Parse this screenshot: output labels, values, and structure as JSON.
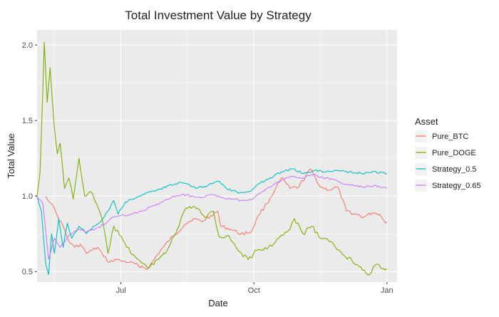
{
  "chart_data": {
    "type": "line",
    "title": "Total Investment Value by Strategy",
    "xlabel": "Date",
    "ylabel": "Total Value",
    "x_axis_type": "date",
    "xlim": [
      "2021-05-04",
      "2022-01-08"
    ],
    "ylim": [
      0.43,
      2.1
    ],
    "x_ticks": [
      {
        "date": "2021-07-01",
        "label": "Jul"
      },
      {
        "date": "2021-10-01",
        "label": "Oct"
      },
      {
        "date": "2022-01-01",
        "label": "Jan"
      }
    ],
    "y_ticks": [
      0.5,
      1.0,
      1.5,
      2.0
    ],
    "y_tick_labels": [
      "0.5",
      "1.0",
      "1.5",
      "2.0"
    ],
    "grid": true,
    "panel_background": "#EBEBEB",
    "legend": {
      "title": "Asset",
      "position": "right"
    },
    "series": [
      {
        "name": "Pure_BTC",
        "color": "#F8766D",
        "points": [
          [
            "2021-05-10",
            1.0
          ],
          [
            "2021-05-14",
            0.95
          ],
          [
            "2021-05-18",
            0.87
          ],
          [
            "2021-05-22",
            0.8
          ],
          [
            "2021-05-26",
            0.7
          ],
          [
            "2021-05-30",
            0.66
          ],
          [
            "2021-06-03",
            0.68
          ],
          [
            "2021-06-07",
            0.62
          ],
          [
            "2021-06-11",
            0.64
          ],
          [
            "2021-06-15",
            0.66
          ],
          [
            "2021-06-19",
            0.6
          ],
          [
            "2021-06-23",
            0.56
          ],
          [
            "2021-06-27",
            0.58
          ],
          [
            "2021-07-01",
            0.57
          ],
          [
            "2021-07-07",
            0.56
          ],
          [
            "2021-07-13",
            0.54
          ],
          [
            "2021-07-20",
            0.52
          ],
          [
            "2021-07-26",
            0.61
          ],
          [
            "2021-07-31",
            0.67
          ],
          [
            "2021-08-07",
            0.74
          ],
          [
            "2021-08-14",
            0.81
          ],
          [
            "2021-08-20",
            0.85
          ],
          [
            "2021-08-26",
            0.83
          ],
          [
            "2021-09-01",
            0.87
          ],
          [
            "2021-09-06",
            0.9
          ],
          [
            "2021-09-08",
            0.8
          ],
          [
            "2021-09-15",
            0.78
          ],
          [
            "2021-09-22",
            0.75
          ],
          [
            "2021-09-29",
            0.76
          ],
          [
            "2021-10-04",
            0.87
          ],
          [
            "2021-10-10",
            0.95
          ],
          [
            "2021-10-16",
            1.05
          ],
          [
            "2021-10-20",
            1.12
          ],
          [
            "2021-10-26",
            1.05
          ],
          [
            "2021-11-01",
            1.06
          ],
          [
            "2021-11-09",
            1.18
          ],
          [
            "2021-11-16",
            1.06
          ],
          [
            "2021-11-22",
            1.04
          ],
          [
            "2021-11-28",
            1.06
          ],
          [
            "2021-12-04",
            0.9
          ],
          [
            "2021-12-10",
            0.88
          ],
          [
            "2021-12-16",
            0.86
          ],
          [
            "2021-12-22",
            0.89
          ],
          [
            "2021-12-27",
            0.88
          ],
          [
            "2021-12-31",
            0.82
          ],
          [
            "2022-01-01",
            0.83
          ]
        ]
      },
      {
        "name": "Pure_DOGE",
        "color": "#7CAE00",
        "points": [
          [
            "2021-05-04",
            1.0
          ],
          [
            "2021-05-06",
            1.15
          ],
          [
            "2021-05-08",
            1.7
          ],
          [
            "2021-05-09",
            2.02
          ],
          [
            "2021-05-11",
            1.62
          ],
          [
            "2021-05-13",
            1.85
          ],
          [
            "2021-05-16",
            1.45
          ],
          [
            "2021-05-18",
            1.28
          ],
          [
            "2021-05-20",
            1.35
          ],
          [
            "2021-05-23",
            1.05
          ],
          [
            "2021-05-26",
            1.12
          ],
          [
            "2021-05-29",
            0.98
          ],
          [
            "2021-06-02",
            1.25
          ],
          [
            "2021-06-06",
            1.0
          ],
          [
            "2021-06-10",
            1.03
          ],
          [
            "2021-06-14",
            0.95
          ],
          [
            "2021-06-18",
            0.85
          ],
          [
            "2021-06-22",
            0.62
          ],
          [
            "2021-06-26",
            0.8
          ],
          [
            "2021-06-30",
            0.74
          ],
          [
            "2021-07-05",
            0.66
          ],
          [
            "2021-07-10",
            0.61
          ],
          [
            "2021-07-15",
            0.56
          ],
          [
            "2021-07-20",
            0.52
          ],
          [
            "2021-07-26",
            0.58
          ],
          [
            "2021-08-02",
            0.64
          ],
          [
            "2021-08-09",
            0.78
          ],
          [
            "2021-08-15",
            0.92
          ],
          [
            "2021-08-21",
            0.93
          ],
          [
            "2021-08-28",
            0.86
          ],
          [
            "2021-09-03",
            0.9
          ],
          [
            "2021-09-07",
            0.73
          ],
          [
            "2021-09-13",
            0.74
          ],
          [
            "2021-09-20",
            0.64
          ],
          [
            "2021-09-27",
            0.58
          ],
          [
            "2021-10-03",
            0.64
          ],
          [
            "2021-10-10",
            0.65
          ],
          [
            "2021-10-18",
            0.72
          ],
          [
            "2021-10-26",
            0.78
          ],
          [
            "2021-10-29",
            0.85
          ],
          [
            "2021-11-04",
            0.75
          ],
          [
            "2021-11-10",
            0.8
          ],
          [
            "2021-11-16",
            0.72
          ],
          [
            "2021-11-22",
            0.7
          ],
          [
            "2021-11-30",
            0.63
          ],
          [
            "2021-12-08",
            0.57
          ],
          [
            "2021-12-14",
            0.53
          ],
          [
            "2021-12-20",
            0.48
          ],
          [
            "2021-12-25",
            0.55
          ],
          [
            "2021-12-28",
            0.52
          ],
          [
            "2021-12-31",
            0.51
          ],
          [
            "2022-01-01",
            0.52
          ]
        ]
      },
      {
        "name": "Strategy_0.5",
        "color": "#00BFC4",
        "points": [
          [
            "2021-05-04",
            1.0
          ],
          [
            "2021-05-07",
            0.9
          ],
          [
            "2021-05-10",
            0.55
          ],
          [
            "2021-05-12",
            0.48
          ],
          [
            "2021-05-14",
            0.75
          ],
          [
            "2021-05-16",
            0.62
          ],
          [
            "2021-05-19",
            0.85
          ],
          [
            "2021-05-22",
            0.66
          ],
          [
            "2021-05-25",
            0.82
          ],
          [
            "2021-05-28",
            0.72
          ],
          [
            "2021-06-02",
            0.8
          ],
          [
            "2021-06-07",
            0.75
          ],
          [
            "2021-06-12",
            0.8
          ],
          [
            "2021-06-17",
            0.83
          ],
          [
            "2021-06-22",
            0.9
          ],
          [
            "2021-06-26",
            0.97
          ],
          [
            "2021-06-29",
            0.88
          ],
          [
            "2021-07-04",
            0.96
          ],
          [
            "2021-07-10",
            0.98
          ],
          [
            "2021-07-18",
            1.02
          ],
          [
            "2021-07-26",
            1.04
          ],
          [
            "2021-08-03",
            1.07
          ],
          [
            "2021-08-10",
            1.09
          ],
          [
            "2021-08-16",
            1.08
          ],
          [
            "2021-08-22",
            1.05
          ],
          [
            "2021-08-30",
            1.07
          ],
          [
            "2021-09-06",
            1.1
          ],
          [
            "2021-09-12",
            1.05
          ],
          [
            "2021-09-20",
            1.02
          ],
          [
            "2021-09-28",
            1.03
          ],
          [
            "2021-10-04",
            1.08
          ],
          [
            "2021-10-12",
            1.12
          ],
          [
            "2021-10-20",
            1.16
          ],
          [
            "2021-10-28",
            1.18
          ],
          [
            "2021-11-04",
            1.15
          ],
          [
            "2021-11-12",
            1.17
          ],
          [
            "2021-11-20",
            1.16
          ],
          [
            "2021-11-28",
            1.17
          ],
          [
            "2021-12-06",
            1.16
          ],
          [
            "2021-12-14",
            1.15
          ],
          [
            "2021-12-22",
            1.16
          ],
          [
            "2022-01-01",
            1.15
          ]
        ]
      },
      {
        "name": "Strategy_0.65",
        "color": "#C77CFF",
        "points": [
          [
            "2021-05-04",
            1.0
          ],
          [
            "2021-05-08",
            0.95
          ],
          [
            "2021-05-12",
            0.58
          ],
          [
            "2021-05-16",
            0.72
          ],
          [
            "2021-05-20",
            0.66
          ],
          [
            "2021-05-26",
            0.74
          ],
          [
            "2021-06-01",
            0.78
          ],
          [
            "2021-06-07",
            0.76
          ],
          [
            "2021-06-13",
            0.78
          ],
          [
            "2021-06-19",
            0.81
          ],
          [
            "2021-06-25",
            0.86
          ],
          [
            "2021-07-01",
            0.87
          ],
          [
            "2021-07-08",
            0.88
          ],
          [
            "2021-07-15",
            0.9
          ],
          [
            "2021-07-22",
            0.93
          ],
          [
            "2021-07-29",
            0.96
          ],
          [
            "2021-08-05",
            0.99
          ],
          [
            "2021-08-12",
            1.01
          ],
          [
            "2021-08-19",
            1.0
          ],
          [
            "2021-08-26",
            0.99
          ],
          [
            "2021-09-02",
            1.01
          ],
          [
            "2021-09-09",
            0.99
          ],
          [
            "2021-09-16",
            0.98
          ],
          [
            "2021-09-23",
            0.97
          ],
          [
            "2021-09-30",
            0.98
          ],
          [
            "2021-10-07",
            1.03
          ],
          [
            "2021-10-14",
            1.07
          ],
          [
            "2021-10-21",
            1.11
          ],
          [
            "2021-10-28",
            1.13
          ],
          [
            "2021-11-04",
            1.12
          ],
          [
            "2021-11-11",
            1.14
          ],
          [
            "2021-11-18",
            1.12
          ],
          [
            "2021-11-25",
            1.11
          ],
          [
            "2021-12-02",
            1.08
          ],
          [
            "2021-12-09",
            1.07
          ],
          [
            "2021-12-16",
            1.06
          ],
          [
            "2021-12-23",
            1.07
          ],
          [
            "2022-01-01",
            1.05
          ]
        ]
      }
    ]
  }
}
